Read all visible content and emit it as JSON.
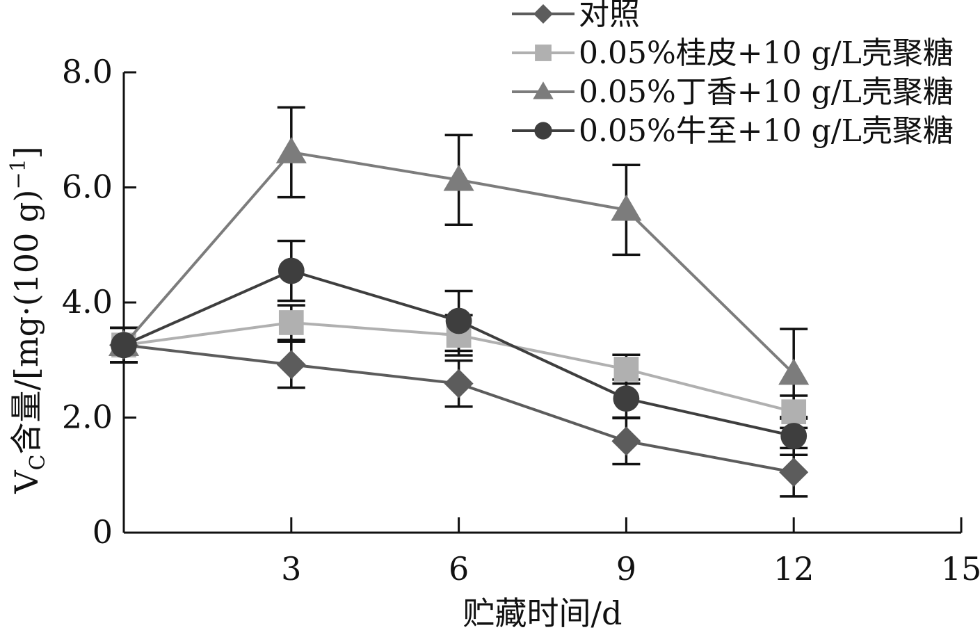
{
  "chart_data": {
    "type": "line",
    "xlabel": "贮藏时间/d",
    "ylabel": "VC含量/[mg·(100 g)−1]",
    "ylabel_parts": {
      "main": "V",
      "sub": "C",
      "rest": "含量/[mg·(100 g)",
      "sup": "−1",
      "close": "]"
    },
    "xlim": [
      0,
      15
    ],
    "ylim": [
      0,
      8
    ],
    "x_ticks": [
      3,
      6,
      9,
      12,
      15
    ],
    "x_tick_labels": [
      "3",
      "6",
      "9",
      "12",
      "15"
    ],
    "y_ticks": [
      0,
      2,
      4,
      6,
      8
    ],
    "y_tick_labels": [
      "0",
      "2.0",
      "4.0",
      "6.0",
      "8.0"
    ],
    "grid": false,
    "legend_position": "top-right",
    "x": [
      0,
      3,
      6,
      9,
      12
    ],
    "series": [
      {
        "name": "对照",
        "marker": "diamond",
        "color": "#5c5c5c",
        "values": [
          3.26,
          2.92,
          2.59,
          1.59,
          1.05
        ],
        "errors": [
          0.3,
          0.4,
          0.4,
          0.4,
          0.42
        ]
      },
      {
        "name": "0.05%桂皮+10 g/L壳聚糖",
        "marker": "square",
        "color": "#b0b0b0",
        "values": [
          3.26,
          3.65,
          3.43,
          2.84,
          2.1
        ],
        "errors": [
          0.3,
          0.3,
          0.35,
          0.25,
          0.28
        ]
      },
      {
        "name": "0.05%丁香+10 g/L壳聚糖",
        "marker": "triangle",
        "color": "#7c7c7c",
        "values": [
          3.26,
          6.61,
          6.13,
          5.61,
          2.76
        ],
        "errors": [
          0.3,
          0.78,
          0.78,
          0.78,
          0.78
        ]
      },
      {
        "name": "0.05%牛至+10 g/L壳聚糖",
        "marker": "circle",
        "color": "#3e3e3e",
        "values": [
          3.26,
          4.55,
          3.68,
          2.33,
          1.68
        ],
        "errors": [
          0.3,
          0.52,
          0.52,
          0.33,
          0.33
        ]
      }
    ]
  }
}
